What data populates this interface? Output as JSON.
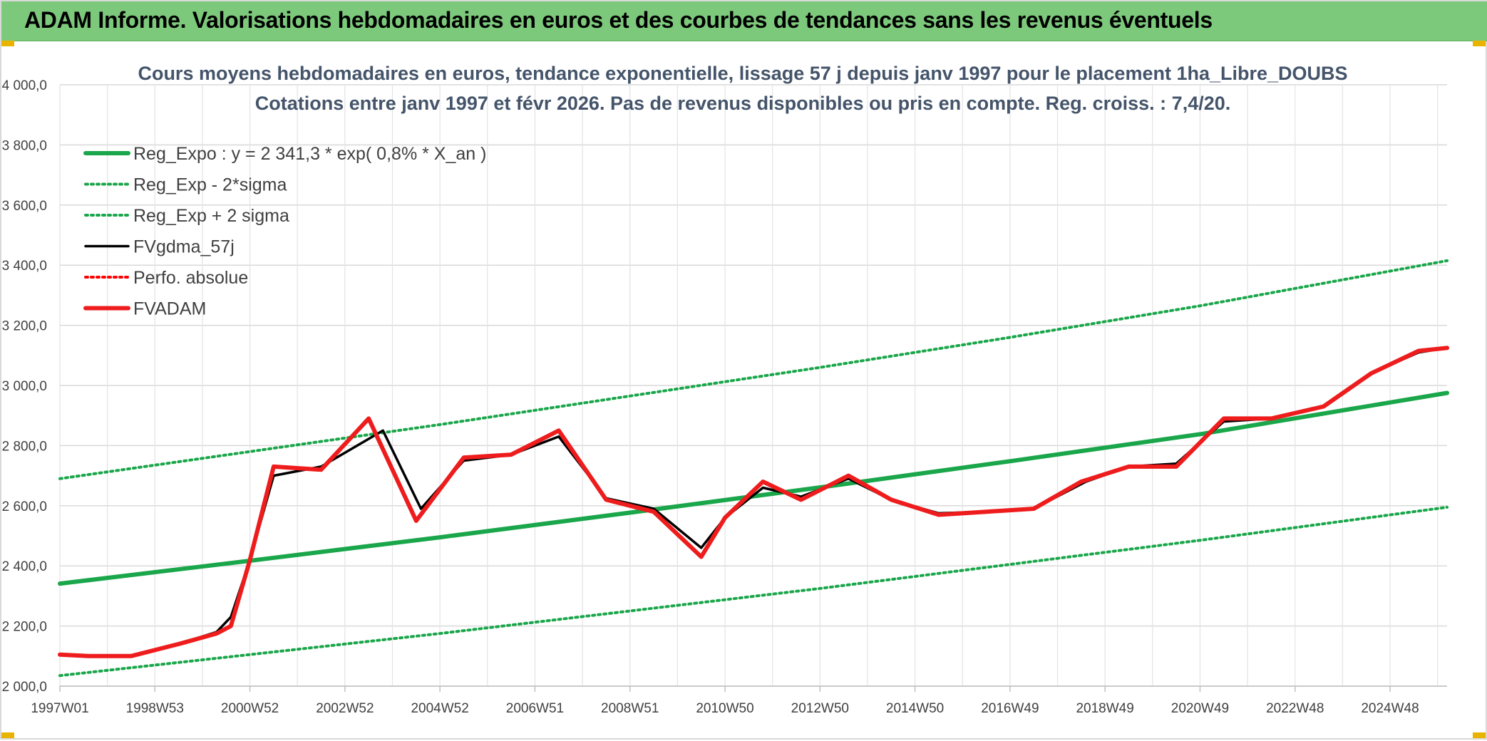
{
  "banner": {
    "title": "ADAM Informe. Valorisations hebdomadaires en euros et des courbes de tendances sans les revenus éventuels",
    "background_color": "#7dc97c"
  },
  "chart_data": {
    "type": "line",
    "title_line1": "Cours moyens hebdomadaires en euros, tendance exponentielle, lissage 57 j depuis janv 1997 pour le placement 1ha_Libre_DOUBS",
    "title_line2": "Cotations entre janv 1997 et févr 2026. Pas de revenus disponibles ou pris en compte. Reg. croiss. : 7,4/20.",
    "xlabel": "",
    "ylabel": "",
    "x_range": [
      1997.0,
      2026.2
    ],
    "ylim": [
      2000,
      4000
    ],
    "y_ticks": [
      2000,
      2200,
      2400,
      2600,
      2800,
      3000,
      3200,
      3400,
      3600,
      3800,
      4000
    ],
    "y_tick_labels": [
      "2 000,0",
      "2 200,0",
      "2 400,0",
      "2 600,0",
      "2 800,0",
      "3 000,0",
      "3 200,0",
      "3 400,0",
      "3 600,0",
      "3 800,0",
      "4 000,0"
    ],
    "x_tick_labels": [
      "1997W01",
      "1998W53",
      "2000W52",
      "2002W52",
      "2004W52",
      "2006W51",
      "2008W51",
      "2010W50",
      "2012W50",
      "2014W50",
      "2016W49",
      "2018W49",
      "2020W49",
      "2022W48",
      "2024W48"
    ],
    "x_tick_positions": [
      1997.0,
      1999.0,
      2001.0,
      2003.0,
      2005.0,
      2007.0,
      2009.0,
      2011.0,
      2013.0,
      2015.0,
      2017.0,
      2019.0,
      2021.0,
      2023.0,
      2025.0
    ],
    "grid": true,
    "legend_position": "top-left",
    "series": [
      {
        "name": "Reg_Expo : y = 2 341,3 * exp( 0,8% *  X_an )",
        "color": "#1aa64a",
        "style": "solid-thick",
        "x": [
          1997.0,
          2001.0,
          2005.0,
          2009.0,
          2013.0,
          2017.0,
          2021.0,
          2026.2
        ],
        "values": [
          2341,
          2417,
          2495,
          2577,
          2661,
          2748,
          2838,
          2975
        ]
      },
      {
        "name": "Reg_Exp - 2*sigma",
        "color": "#1aa64a",
        "style": "dotted",
        "x": [
          1997.0,
          2001.0,
          2005.0,
          2009.0,
          2013.0,
          2017.0,
          2021.0,
          2026.2
        ],
        "values": [
          2035,
          2105,
          2175,
          2250,
          2325,
          2405,
          2485,
          2595
        ]
      },
      {
        "name": "Reg_Exp + 2 sigma",
        "color": "#1aa64a",
        "style": "dotted",
        "x": [
          1997.0,
          2001.0,
          2005.0,
          2009.0,
          2013.0,
          2017.0,
          2021.0,
          2026.2
        ],
        "values": [
          2690,
          2780,
          2870,
          2965,
          3060,
          3160,
          3265,
          3415
        ]
      },
      {
        "name": "FVgdma_57j",
        "color": "#000000",
        "style": "solid",
        "x": [
          1997.0,
          1997.6,
          1998.5,
          1999.5,
          2000.3,
          2000.6,
          2001.0,
          2001.5,
          2002.5,
          2003.8,
          2004.6,
          2005.5,
          2006.5,
          2007.5,
          2008.5,
          2009.5,
          2010.5,
          2011.0,
          2011.8,
          2012.6,
          2013.6,
          2014.5,
          2015.5,
          2016.5,
          2017.5,
          2018.6,
          2019.5,
          2020.5,
          2021.5,
          2022.5,
          2023.6,
          2024.6,
          2025.6,
          2026.2
        ],
        "values": [
          2105,
          2100,
          2100,
          2140,
          2180,
          2230,
          2420,
          2700,
          2730,
          2850,
          2590,
          2750,
          2770,
          2830,
          2625,
          2590,
          2460,
          2560,
          2660,
          2630,
          2690,
          2620,
          2575,
          2580,
          2590,
          2680,
          2730,
          2740,
          2880,
          2890,
          2930,
          3040,
          3110,
          3125
        ]
      },
      {
        "name": "Perfo. absolue",
        "color": "#ff0000",
        "style": "dotted",
        "x": [],
        "values": []
      },
      {
        "name": "FVADAM",
        "color": "#ee1c1c",
        "style": "solid-thick",
        "x": [
          1997.0,
          1997.6,
          1998.5,
          1999.5,
          2000.3,
          2000.6,
          2001.0,
          2001.5,
          2002.5,
          2003.5,
          2004.5,
          2005.5,
          2006.5,
          2007.5,
          2008.5,
          2009.5,
          2010.5,
          2011.0,
          2011.8,
          2012.6,
          2013.6,
          2014.5,
          2015.5,
          2016.5,
          2017.5,
          2018.5,
          2019.5,
          2020.5,
          2021.5,
          2022.5,
          2023.6,
          2024.6,
          2025.6,
          2026.2
        ],
        "values": [
          2105,
          2100,
          2100,
          2140,
          2175,
          2200,
          2420,
          2730,
          2720,
          2890,
          2550,
          2760,
          2770,
          2850,
          2620,
          2580,
          2430,
          2560,
          2680,
          2620,
          2700,
          2620,
          2570,
          2580,
          2590,
          2680,
          2730,
          2730,
          2890,
          2890,
          2930,
          3040,
          3115,
          3125
        ]
      }
    ]
  }
}
